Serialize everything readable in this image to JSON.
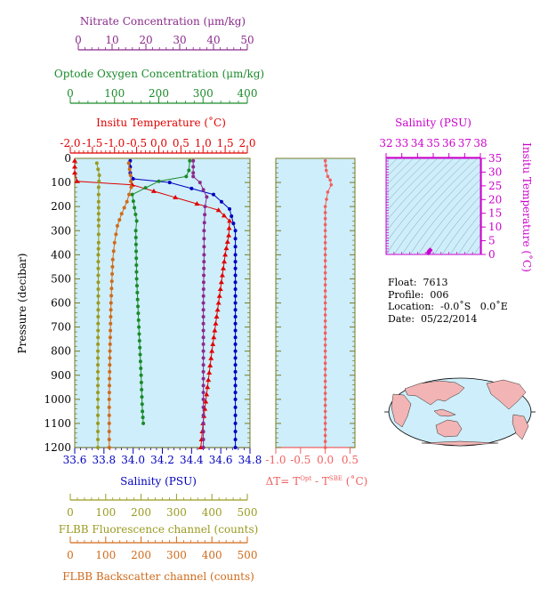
{
  "chart_data": {
    "type": "line",
    "ylabel": "Pressure (decibar)",
    "yticks": [
      0,
      100,
      200,
      300,
      400,
      500,
      600,
      700,
      800,
      900,
      1000,
      1100,
      1200
    ],
    "ylim": [
      0,
      1200
    ],
    "axes": {
      "nitrate": {
        "label": "Nitrate Concentration (μm/kg)",
        "ticks": [
          "0",
          "10",
          "20",
          "30",
          "40",
          "50"
        ],
        "range": [
          0,
          50
        ],
        "color": "#8b2a8b"
      },
      "oxygen": {
        "label": "Optode Oxygen Concentration (μm/kg)",
        "ticks": [
          "0",
          "100",
          "200",
          "300",
          "400"
        ],
        "range": [
          0,
          400
        ],
        "color": "#1a8a2a"
      },
      "temperature": {
        "label": "Insitu Temperature (˚C)",
        "ticks": [
          "-2.0",
          "-1.5",
          "-1.0",
          "-0.5",
          "0.0",
          "0.5",
          "1.0",
          "1.5",
          "2.0"
        ],
        "range": [
          -2.0,
          2.0
        ],
        "color": "#e00000"
      },
      "salinity": {
        "label": "Salinity (PSU)",
        "ticks": [
          "33.6",
          "33.8",
          "34.0",
          "34.2",
          "34.4",
          "34.6",
          "34.8"
        ],
        "range": [
          33.6,
          34.8
        ],
        "color": "#0000c0"
      },
      "fluorescence": {
        "label": "FLBB Fluorescence channel (counts)",
        "ticks": [
          "0",
          "100",
          "200",
          "300",
          "400",
          "500"
        ],
        "range": [
          0,
          500
        ],
        "color": "#9a9a22"
      },
      "backscatter": {
        "label": "FLBB Backscatter channel (counts)",
        "ticks": [
          "0",
          "100",
          "200",
          "300",
          "400",
          "500"
        ],
        "range": [
          0,
          500
        ],
        "color": "#d06a1a"
      },
      "dt": {
        "label_prefix": "ΔT= T",
        "label_sup1": "Opt",
        "label_mid": " - T",
        "label_sup2": "SBE",
        "label_suffix": " (˚C)",
        "ticks": [
          "-1.0",
          "-0.5",
          "0.0",
          "0.5"
        ],
        "range": [
          -1.0,
          0.6
        ],
        "color": "#f06060"
      },
      "ts_salinity": {
        "label": "Salinity (PSU)",
        "ticks": [
          "32",
          "33",
          "34",
          "35",
          "36",
          "37",
          "38"
        ],
        "range": [
          32,
          38
        ],
        "color": "#cc00cc"
      },
      "ts_temperature": {
        "label": "Insitu Temperature (˚C)",
        "ticks": [
          "0",
          "5",
          "10",
          "15",
          "20",
          "25",
          "30",
          "35"
        ],
        "range": [
          0,
          35
        ],
        "color": "#cc00cc"
      }
    },
    "series": [
      {
        "name": "Temperature",
        "axis": "temperature",
        "marker": "triangle",
        "x": [
          -1.9,
          -1.9,
          -1.85,
          -0.6,
          1.35,
          1.6,
          1.58,
          1.5,
          1.35,
          1.2,
          1.1,
          1.0,
          0.95
        ],
        "y": [
          10,
          60,
          95,
          110,
          215,
          260,
          320,
          400,
          600,
          800,
          950,
          1100,
          1200
        ]
      },
      {
        "name": "Salinity",
        "axis": "salinity",
        "marker": "circle",
        "x": [
          33.98,
          33.98,
          34.0,
          34.25,
          34.55,
          34.66,
          34.7,
          34.7,
          34.7,
          34.7,
          34.7,
          34.7,
          34.7
        ],
        "y": [
          10,
          60,
          85,
          100,
          150,
          210,
          300,
          400,
          600,
          800,
          1000,
          1100,
          1200
        ]
      },
      {
        "name": "Oxygen",
        "axis": "oxygen",
        "marker": "circle",
        "x": [
          270,
          268,
          262,
          200,
          140,
          145,
          150,
          148,
          150,
          155,
          160,
          163,
          165
        ],
        "y": [
          10,
          50,
          75,
          95,
          150,
          205,
          260,
          300,
          500,
          700,
          900,
          1050,
          1100
        ]
      },
      {
        "name": "Nitrate",
        "axis": "nitrate",
        "marker": "circle",
        "x": [
          34,
          34,
          34,
          36,
          38,
          37.5,
          37.2,
          37.2,
          37,
          37,
          37,
          37,
          37
        ],
        "y": [
          10,
          60,
          75,
          100,
          160,
          200,
          300,
          400,
          600,
          800,
          1000,
          1100,
          1200
        ]
      },
      {
        "name": "Fluorescence",
        "axis": "fluorescence",
        "marker": "circle",
        "x": [
          75,
          82,
          80,
          80,
          80,
          80,
          80,
          79,
          79,
          78,
          78,
          78,
          78
        ],
        "y": [
          20,
          70,
          120,
          180,
          230,
          280,
          350,
          400,
          600,
          800,
          1000,
          1100,
          1200
        ]
      },
      {
        "name": "Backscatter",
        "axis": "backscatter",
        "marker": "circle",
        "x": [
          165,
          170,
          172,
          160,
          145,
          133,
          125,
          120,
          115,
          112,
          110,
          110,
          110
        ],
        "y": [
          20,
          70,
          120,
          180,
          230,
          280,
          350,
          420,
          600,
          800,
          1000,
          1100,
          1200
        ]
      },
      {
        "name": "DeltaT",
        "axis": "dt",
        "marker": "circle",
        "x": [
          0.0,
          0.02,
          0.05,
          0.1,
          0.12,
          0.05,
          0.0,
          0.0,
          0.0,
          0.0,
          0.0,
          0.0,
          0.0,
          0.0
        ],
        "y": [
          10,
          50,
          75,
          90,
          110,
          140,
          200,
          300,
          400,
          600,
          800,
          1000,
          1100,
          1200
        ]
      },
      {
        "name": "TS",
        "axis": "ts_salinity",
        "marker": "diamond",
        "x": [
          34.7,
          34.75,
          34.8
        ],
        "y": [
          0.6,
          1.2,
          1.6
        ]
      }
    ],
    "grid": false,
    "legend": "none"
  },
  "info": {
    "float": "Float:  7613",
    "profile": "Profile:  006",
    "location": "Location:  -0.0˚S   0.0˚E",
    "date": "Date:  05/22/2014"
  },
  "colors": {
    "panel_bg": "#cdeefa",
    "frame": "#7a7a22",
    "land": "#f2b4b4",
    "ocean": "#cdeefa"
  }
}
